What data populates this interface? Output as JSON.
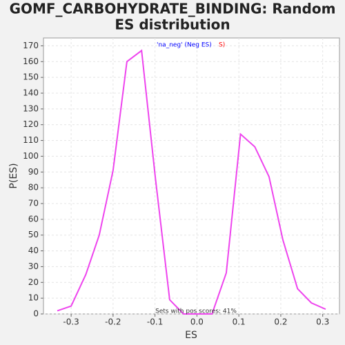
{
  "chart_data": {
    "type": "line",
    "title_lines": [
      "GOMF_CARBOHYDRATE_BINDING: Random",
      "ES distribution"
    ],
    "x_label": "ES",
    "y_label": "P(ES)",
    "legend": [
      {
        "text": "'na_neg' (Neg ES)",
        "color": "#0000ff"
      },
      {
        "text": "S)",
        "color": "#ff0000"
      }
    ],
    "annotation": "Sets with pos scores: 41%",
    "x": [
      -0.333,
      -0.3,
      -0.265,
      -0.233,
      -0.2,
      -0.167,
      -0.132,
      -0.099,
      -0.065,
      -0.032,
      0.002,
      0.036,
      0.07,
      0.104,
      0.138,
      0.172,
      0.205,
      0.24,
      0.273,
      0.307
    ],
    "values": [
      2,
      5,
      25,
      50,
      91,
      160,
      167,
      86,
      9,
      0,
      0,
      0,
      26,
      114,
      106,
      87,
      47,
      16,
      7,
      3
    ],
    "color": "#ee44ee",
    "xlim": [
      -0.366,
      0.34
    ],
    "ylim": [
      0,
      175
    ],
    "xticks": [
      -0.3,
      -0.2,
      -0.1,
      {
        "value": 0,
        "label": "0.0"
      },
      0.1,
      0.2,
      0.3
    ],
    "yticks": [
      0,
      10,
      20,
      30,
      40,
      50,
      60,
      70,
      80,
      90,
      100,
      110,
      120,
      130,
      140,
      150,
      160,
      170
    ],
    "grid": true
  }
}
